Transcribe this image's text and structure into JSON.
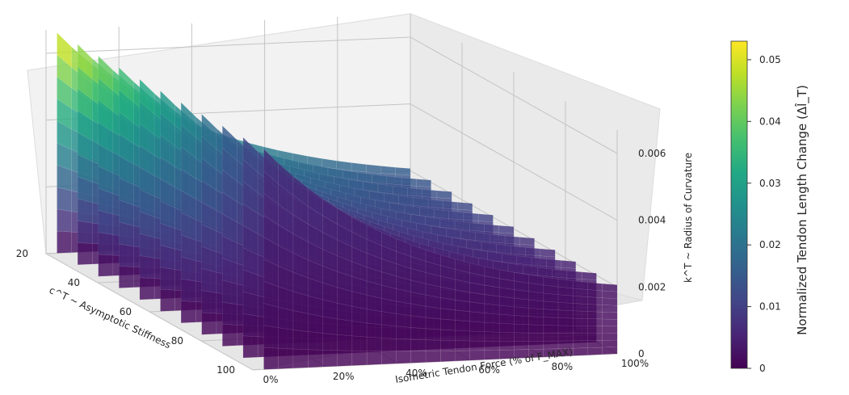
{
  "chart_data": {
    "type": "surface3d",
    "x_axis": {
      "label": "Isometric Tendon Force (% of F_MAX)",
      "label_math": "F_MAX",
      "ticks": [
        "0%",
        "20%",
        "40%",
        "60%",
        "80%",
        "100%"
      ],
      "range": [
        0,
        100
      ]
    },
    "y_axis": {
      "label": "c^T ~ Asymptotic Stiffness",
      "ticks": [
        "20",
        "40",
        "60",
        "80",
        "100"
      ],
      "range": [
        20,
        100
      ]
    },
    "z_axis": {
      "label": "k^T ~ Radius of Curvature",
      "ticks": [
        "0",
        "0.002",
        "0.004",
        "0.006"
      ],
      "range": [
        0,
        0.0067
      ]
    },
    "colorbar": {
      "label": "Normalized Tendon Length Change (Δl̂_T)",
      "ticks": [
        "0",
        "0.01",
        "0.02",
        "0.03",
        "0.04",
        "0.05"
      ],
      "range": [
        0,
        0.053
      ],
      "colormap": "viridis"
    },
    "stiffness_values": [
      20,
      28,
      36,
      44,
      52,
      60,
      68,
      76,
      84,
      92,
      100
    ],
    "curvature_range": [
      0.0015,
      0.0066
    ],
    "max_length_change": 0.053,
    "grid": true
  }
}
